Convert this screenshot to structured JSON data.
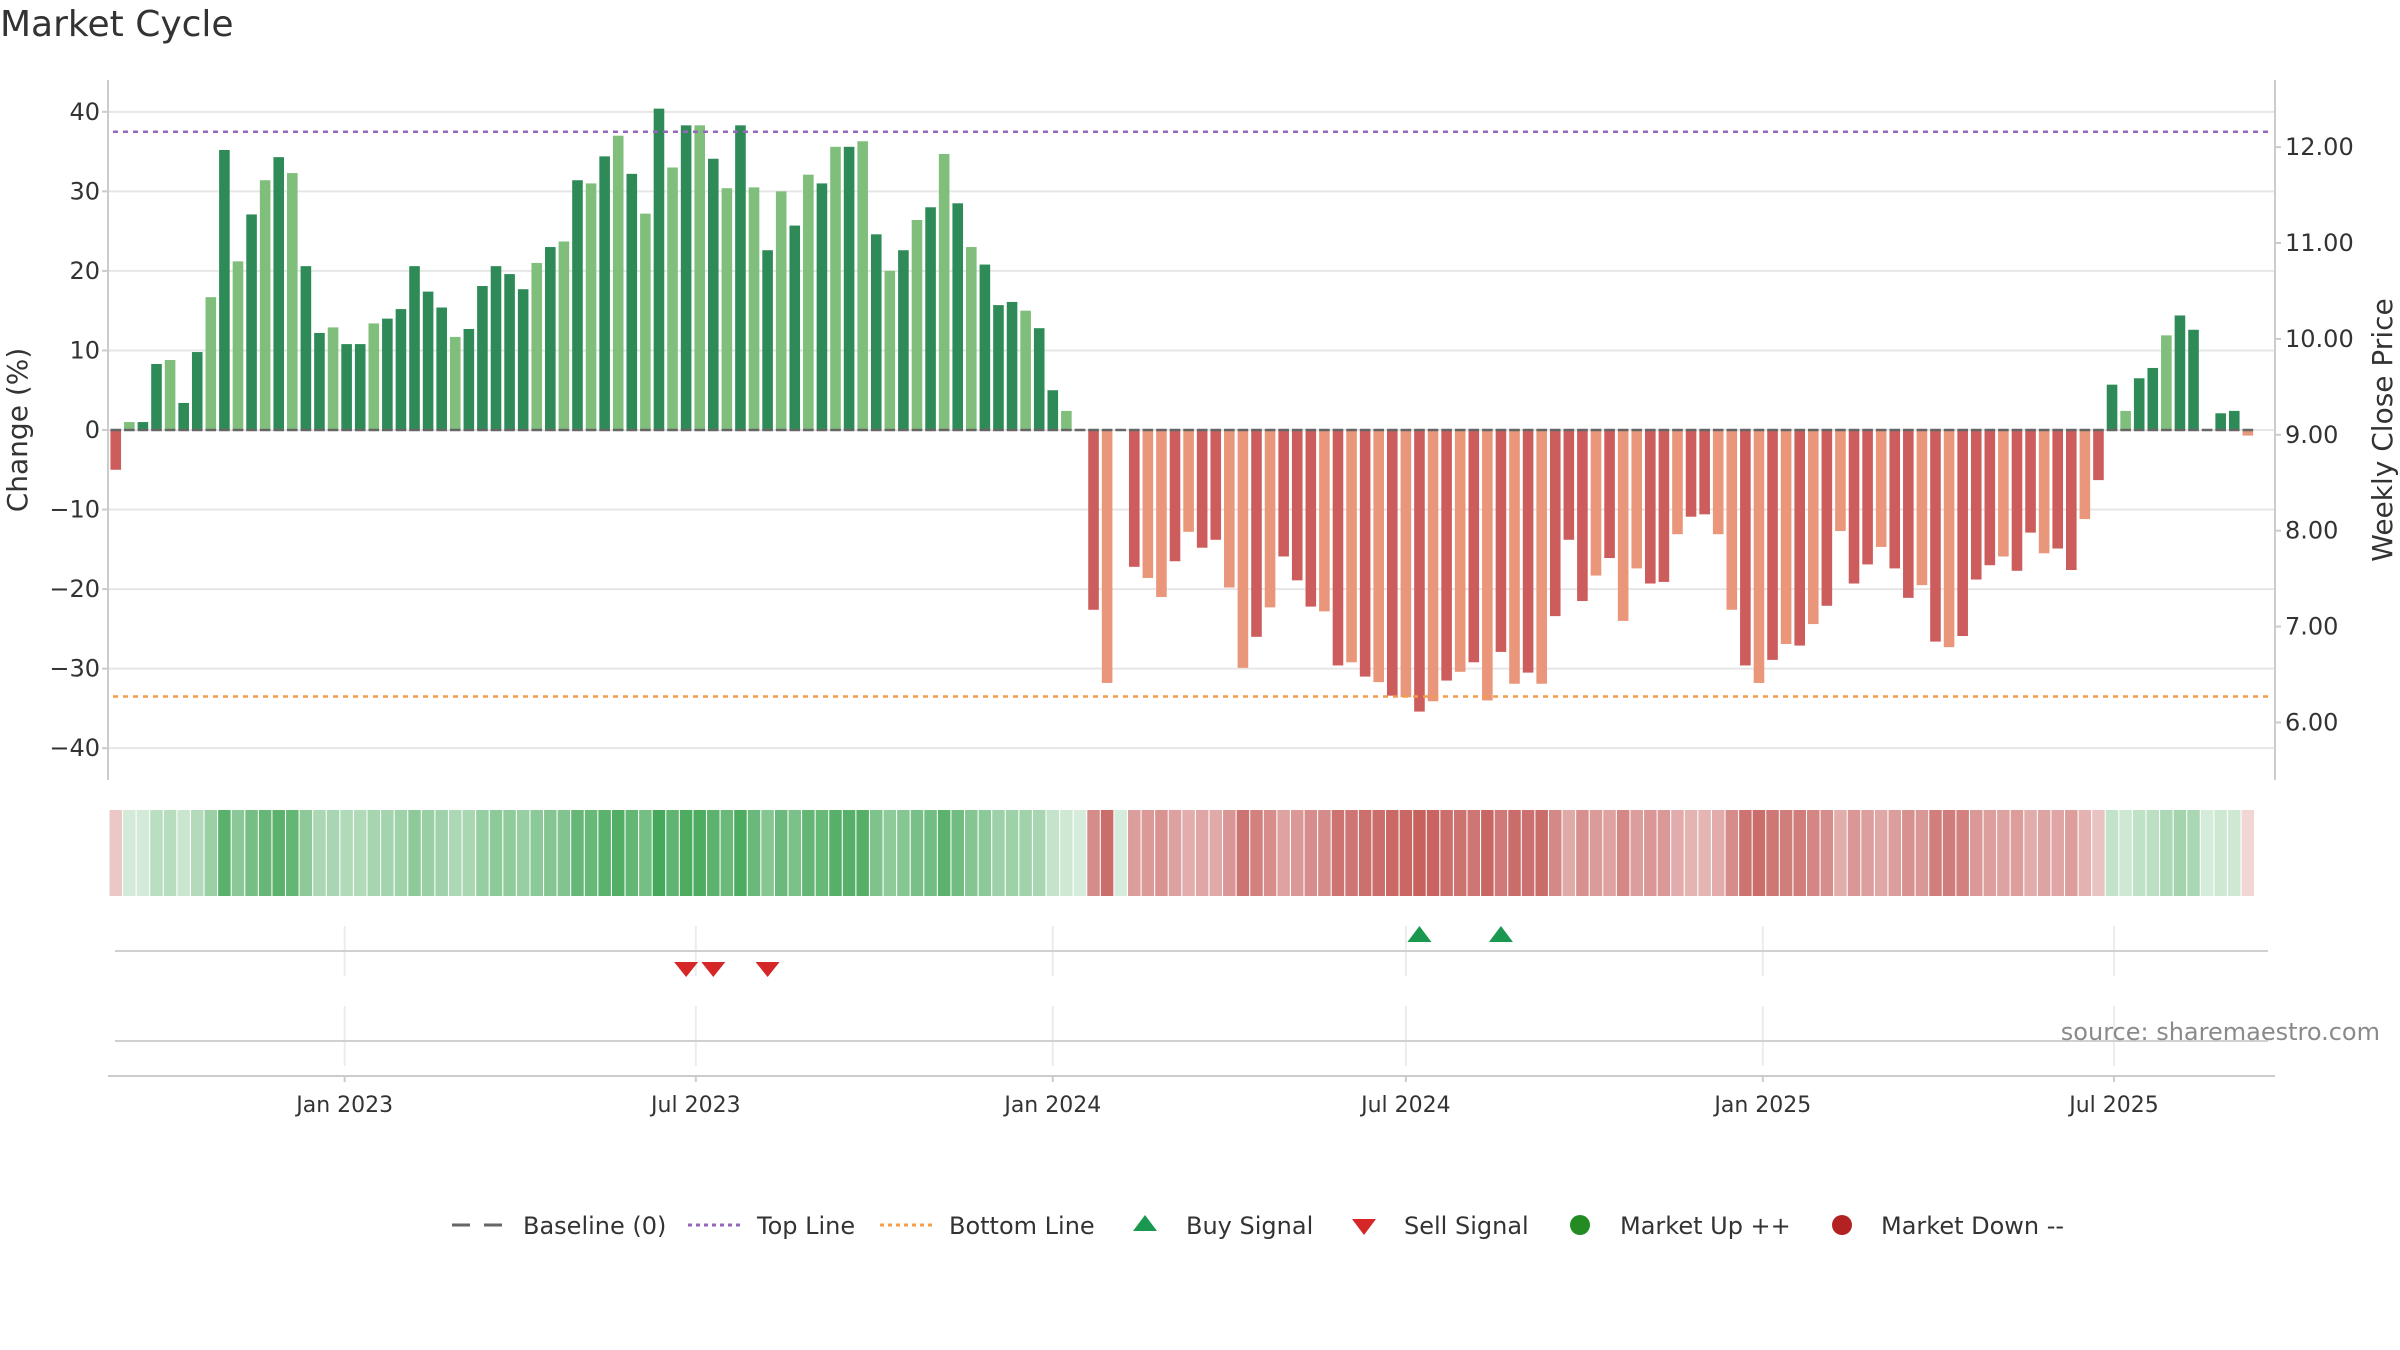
{
  "title": "Market Cycle",
  "source": "source: sharemaestro.com",
  "colors": {
    "up_dark": "#2e8b57",
    "up_light": "#7fbf7b",
    "down_dark": "#cd5c5c",
    "down_light": "#e9967a",
    "top_line": "#9467bd",
    "bottom_line": "#f39c4a",
    "baseline": "#666666",
    "buy": "#1a9850",
    "sell": "#d62728",
    "market_up": "#228b22",
    "market_down": "#b22222"
  },
  "legend": {
    "items": [
      {
        "label": "Baseline (0)",
        "icon": "dash-line-icon"
      },
      {
        "label": "Top Line",
        "icon": "dotted-purple-line-icon"
      },
      {
        "label": "Bottom Line",
        "icon": "dotted-orange-line-icon"
      },
      {
        "label": "Buy Signal",
        "icon": "triangle-up-icon"
      },
      {
        "label": "Sell Signal",
        "icon": "triangle-down-icon"
      },
      {
        "label": "Market Up ++",
        "icon": "green-dot-icon"
      },
      {
        "label": "Market Down --",
        "icon": "red-dot-icon"
      }
    ]
  },
  "chart_data": {
    "type": "bar",
    "title": "Market Cycle",
    "ylabel": "Change (%)",
    "y2label": "Weekly Close Price",
    "ylim": [
      -44,
      44
    ],
    "yticks": [
      40,
      30,
      20,
      10,
      0,
      -10,
      -20,
      -30,
      -40
    ],
    "y2ticks": [
      "12.00",
      "11.00",
      "10.00",
      "9.00",
      "8.00",
      "7.00",
      "6.00"
    ],
    "y2lim": [
      5.4,
      12.7
    ],
    "top_line": 37.5,
    "bottom_line": -33.5,
    "xlim": [
      "2022-09-01",
      "2025-09-22"
    ],
    "xticks": [
      {
        "label": "Jan 2023",
        "date": "2023-01-01"
      },
      {
        "label": "Jul 2023",
        "date": "2023-07-01"
      },
      {
        "label": "Jan 2024",
        "date": "2024-01-01"
      },
      {
        "label": "Jul 2024",
        "date": "2024-07-01"
      },
      {
        "label": "Jan 2025",
        "date": "2025-01-01"
      },
      {
        "label": "Jul 2025",
        "date": "2025-07-01"
      }
    ],
    "start_week": "2022-09-05",
    "values": [
      -5,
      1,
      1,
      8.3,
      8.8,
      3.4,
      9.8,
      16.7,
      35.2,
      21.2,
      27.1,
      31.4,
      34.3,
      32.3,
      20.6,
      12.2,
      12.9,
      10.8,
      10.8,
      13.4,
      14,
      15.2,
      20.6,
      17.4,
      15.4,
      11.7,
      12.7,
      18.1,
      20.6,
      19.6,
      17.7,
      21,
      23,
      23.7,
      31.4,
      31,
      34.4,
      37,
      32.2,
      27.2,
      40.4,
      33,
      38.3,
      38.3,
      34.1,
      30.4,
      38.3,
      30.5,
      22.6,
      30,
      25.7,
      32.1,
      31,
      35.6,
      35.6,
      36.3,
      24.6,
      20,
      22.6,
      26.4,
      28,
      34.7,
      28.5,
      23,
      20.8,
      15.7,
      16.1,
      15,
      12.8,
      5,
      2.4,
      0,
      -22.6,
      -31.8,
      0,
      -17.2,
      -18.6,
      -21,
      -16.5,
      -12.8,
      -14.8,
      -13.8,
      -19.8,
      -29.9,
      -26,
      -22.3,
      -15.9,
      -18.9,
      -22.2,
      -22.8,
      -29.6,
      -29.2,
      -31,
      -31.7,
      -33.4,
      -33.6,
      -35.4,
      -34.1,
      -31.5,
      -30.4,
      -29.2,
      -34,
      -27.9,
      -31.9,
      -30.5,
      -31.9,
      -23.4,
      -13.8,
      -21.5,
      -18.3,
      -16.1,
      -24,
      -17.4,
      -19.3,
      -19.1,
      -13.1,
      -10.9,
      -10.6,
      -13.1,
      -22.6,
      -29.6,
      -31.8,
      -28.9,
      -26.9,
      -27.1,
      -24.4,
      -22.1,
      -12.7,
      -19.3,
      -16.9,
      -14.7,
      -17.4,
      -21.1,
      -19.5,
      -26.6,
      -27.3,
      -25.9,
      -18.8,
      -17,
      -15.9,
      -17.7,
      -12.9,
      -15.5,
      -14.9,
      -17.6,
      -11.2,
      -6.3,
      5.7,
      2.4,
      6.5,
      7.8,
      11.9,
      14.4,
      12.6,
      0,
      2.1,
      2.4,
      -0.7
    ],
    "buy_signals": [
      "2024-07-08",
      "2024-08-19"
    ],
    "sell_signals": [
      "2023-06-26",
      "2023-07-10",
      "2023-08-07"
    ]
  }
}
